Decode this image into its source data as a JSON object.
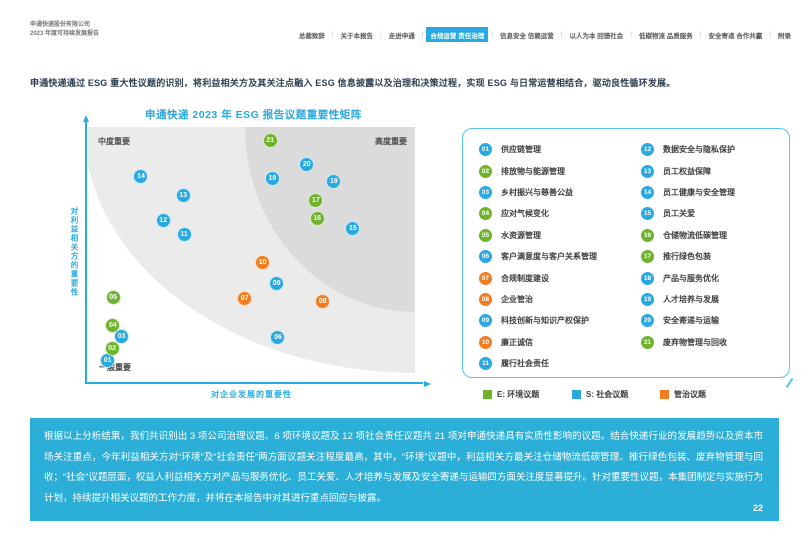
{
  "colors": {
    "E": "#6FB32D",
    "S": "#29A9E0",
    "G": "#F07E20",
    "accent_blue": "#29ABE2",
    "band_bg": "#2BAED8"
  },
  "header": {
    "company_line1": "申通快递股份有限公司",
    "company_line2": "2023 年度可持续发展报告",
    "nav": [
      {
        "label": "总裁致辞",
        "active": false
      },
      {
        "label": "关于本报告",
        "active": false
      },
      {
        "label": "走进申通",
        "active": false
      },
      {
        "label": "合规运营 责任治理",
        "active": true
      },
      {
        "label": "信息安全 信赖运营",
        "active": false
      },
      {
        "label": "以人为本 回馈社会",
        "active": false
      },
      {
        "label": "低碳物流 品质服务",
        "active": false
      },
      {
        "label": "安全寄递 合作共赢",
        "active": false
      },
      {
        "label": "附录",
        "active": false
      }
    ]
  },
  "intro": "申通快递通过 ESG 重大性议题的识别，将利益相关方及其关注点融入 ESG 信息披露以及治理和决策过程，实现 ESG 与日常运营相结合，驱动良性循环发展。",
  "chart_data": {
    "type": "scatter",
    "title": "申通快递 2023 年 ESG 报告议题重要性矩阵",
    "xlabel": "对企业发展的重要性",
    "ylabel": "对利益相关方的重要性",
    "quadrants": {
      "mid": "中度重要",
      "high": "高度重要",
      "low": "一般重要"
    },
    "axis_ranges": {
      "x": [
        0,
        100
      ],
      "y": [
        0,
        100
      ]
    },
    "points": [
      {
        "id": "01",
        "label": "供应链管理",
        "category": "S",
        "x": 6.0,
        "y": 91.1
      },
      {
        "id": "02",
        "label": "排放物与能源管理",
        "category": "E",
        "x": 7.4,
        "y": 86.6
      },
      {
        "id": "03",
        "label": "乡村振兴与慈善公益",
        "category": "S",
        "x": 10.3,
        "y": 82.0
      },
      {
        "id": "04",
        "label": "应对气候变化",
        "category": "E",
        "x": 7.6,
        "y": 77.6
      },
      {
        "id": "05",
        "label": "水资源管理",
        "category": "E",
        "x": 7.7,
        "y": 66.7
      },
      {
        "id": "06",
        "label": "客户满意度与客户关系管理",
        "category": "S",
        "x": 58.1,
        "y": 82.2
      },
      {
        "id": "07",
        "label": "合规制度建设",
        "category": "G",
        "x": 47.9,
        "y": 66.9
      },
      {
        "id": "08",
        "label": "企业管治",
        "category": "G",
        "x": 71.8,
        "y": 68.1
      },
      {
        "id": "09",
        "label": "科技创新与知识产权保护",
        "category": "S",
        "x": 57.7,
        "y": 61.2
      },
      {
        "id": "10",
        "label": "廉正诚信",
        "category": "G",
        "x": 53.4,
        "y": 52.9
      },
      {
        "id": "11",
        "label": "履行社会责任",
        "category": "S",
        "x": 29.4,
        "y": 41.8
      },
      {
        "id": "12",
        "label": "数据安全与隐私保护",
        "category": "S",
        "x": 23.0,
        "y": 36.7
      },
      {
        "id": "13",
        "label": "员工权益保障",
        "category": "S",
        "x": 29.1,
        "y": 26.8
      },
      {
        "id": "14",
        "label": "员工健康与安全管理",
        "category": "S",
        "x": 16.2,
        "y": 19.3
      },
      {
        "id": "15",
        "label": "员工关爱",
        "category": "S",
        "x": 81.0,
        "y": 39.8
      },
      {
        "id": "16",
        "label": "仓储物流低碳管理",
        "category": "E",
        "x": 70.1,
        "y": 35.7
      },
      {
        "id": "17",
        "label": "推行绿色包装",
        "category": "E",
        "x": 69.7,
        "y": 28.9
      },
      {
        "id": "18",
        "label": "产品与服务优化",
        "category": "S",
        "x": 56.4,
        "y": 20.3
      },
      {
        "id": "19",
        "label": "人才培养与发展",
        "category": "S",
        "x": 75.2,
        "y": 21.1
      },
      {
        "id": "20",
        "label": "安全寄递与运输",
        "category": "S",
        "x": 66.9,
        "y": 14.8
      },
      {
        "id": "21",
        "label": "废弃物管理与回收",
        "category": "E",
        "x": 55.7,
        "y": 5.4
      }
    ],
    "category_legend": [
      {
        "category": "E",
        "label": "E: 环境议题"
      },
      {
        "category": "S",
        "label": "S: 社会议题"
      },
      {
        "category": "G",
        "label": "管治议题"
      }
    ],
    "legend_position": "right"
  },
  "footer": {
    "paragraph": "根据以上分析结果，我们共识别出 3 项公司治理议题、6 项环境议题及 12 项社会责任议题共 21 项对申通快递具有实质性影响的议题。结合快递行业的发展趋势以及资本市场关注重点，今年利益相关方对“环境”及“社会责任”两方面议题关注程度最高，其中，“环境”议题中，利益相关方最关注仓储物流低碳管理、推行绿色包装、废弃物管理与回收；“社会”议题层面，权益人利益相关方对产品与服务优化、员工关爱、人才培养与发展及安全寄递与运输四方面关注度显著提升。针对重要性议题，本集团制定与实施行为计划，持续提升相关议题的工作力度，并将在本报告中对其进行重点回应与披露。",
    "page_number": "22"
  }
}
